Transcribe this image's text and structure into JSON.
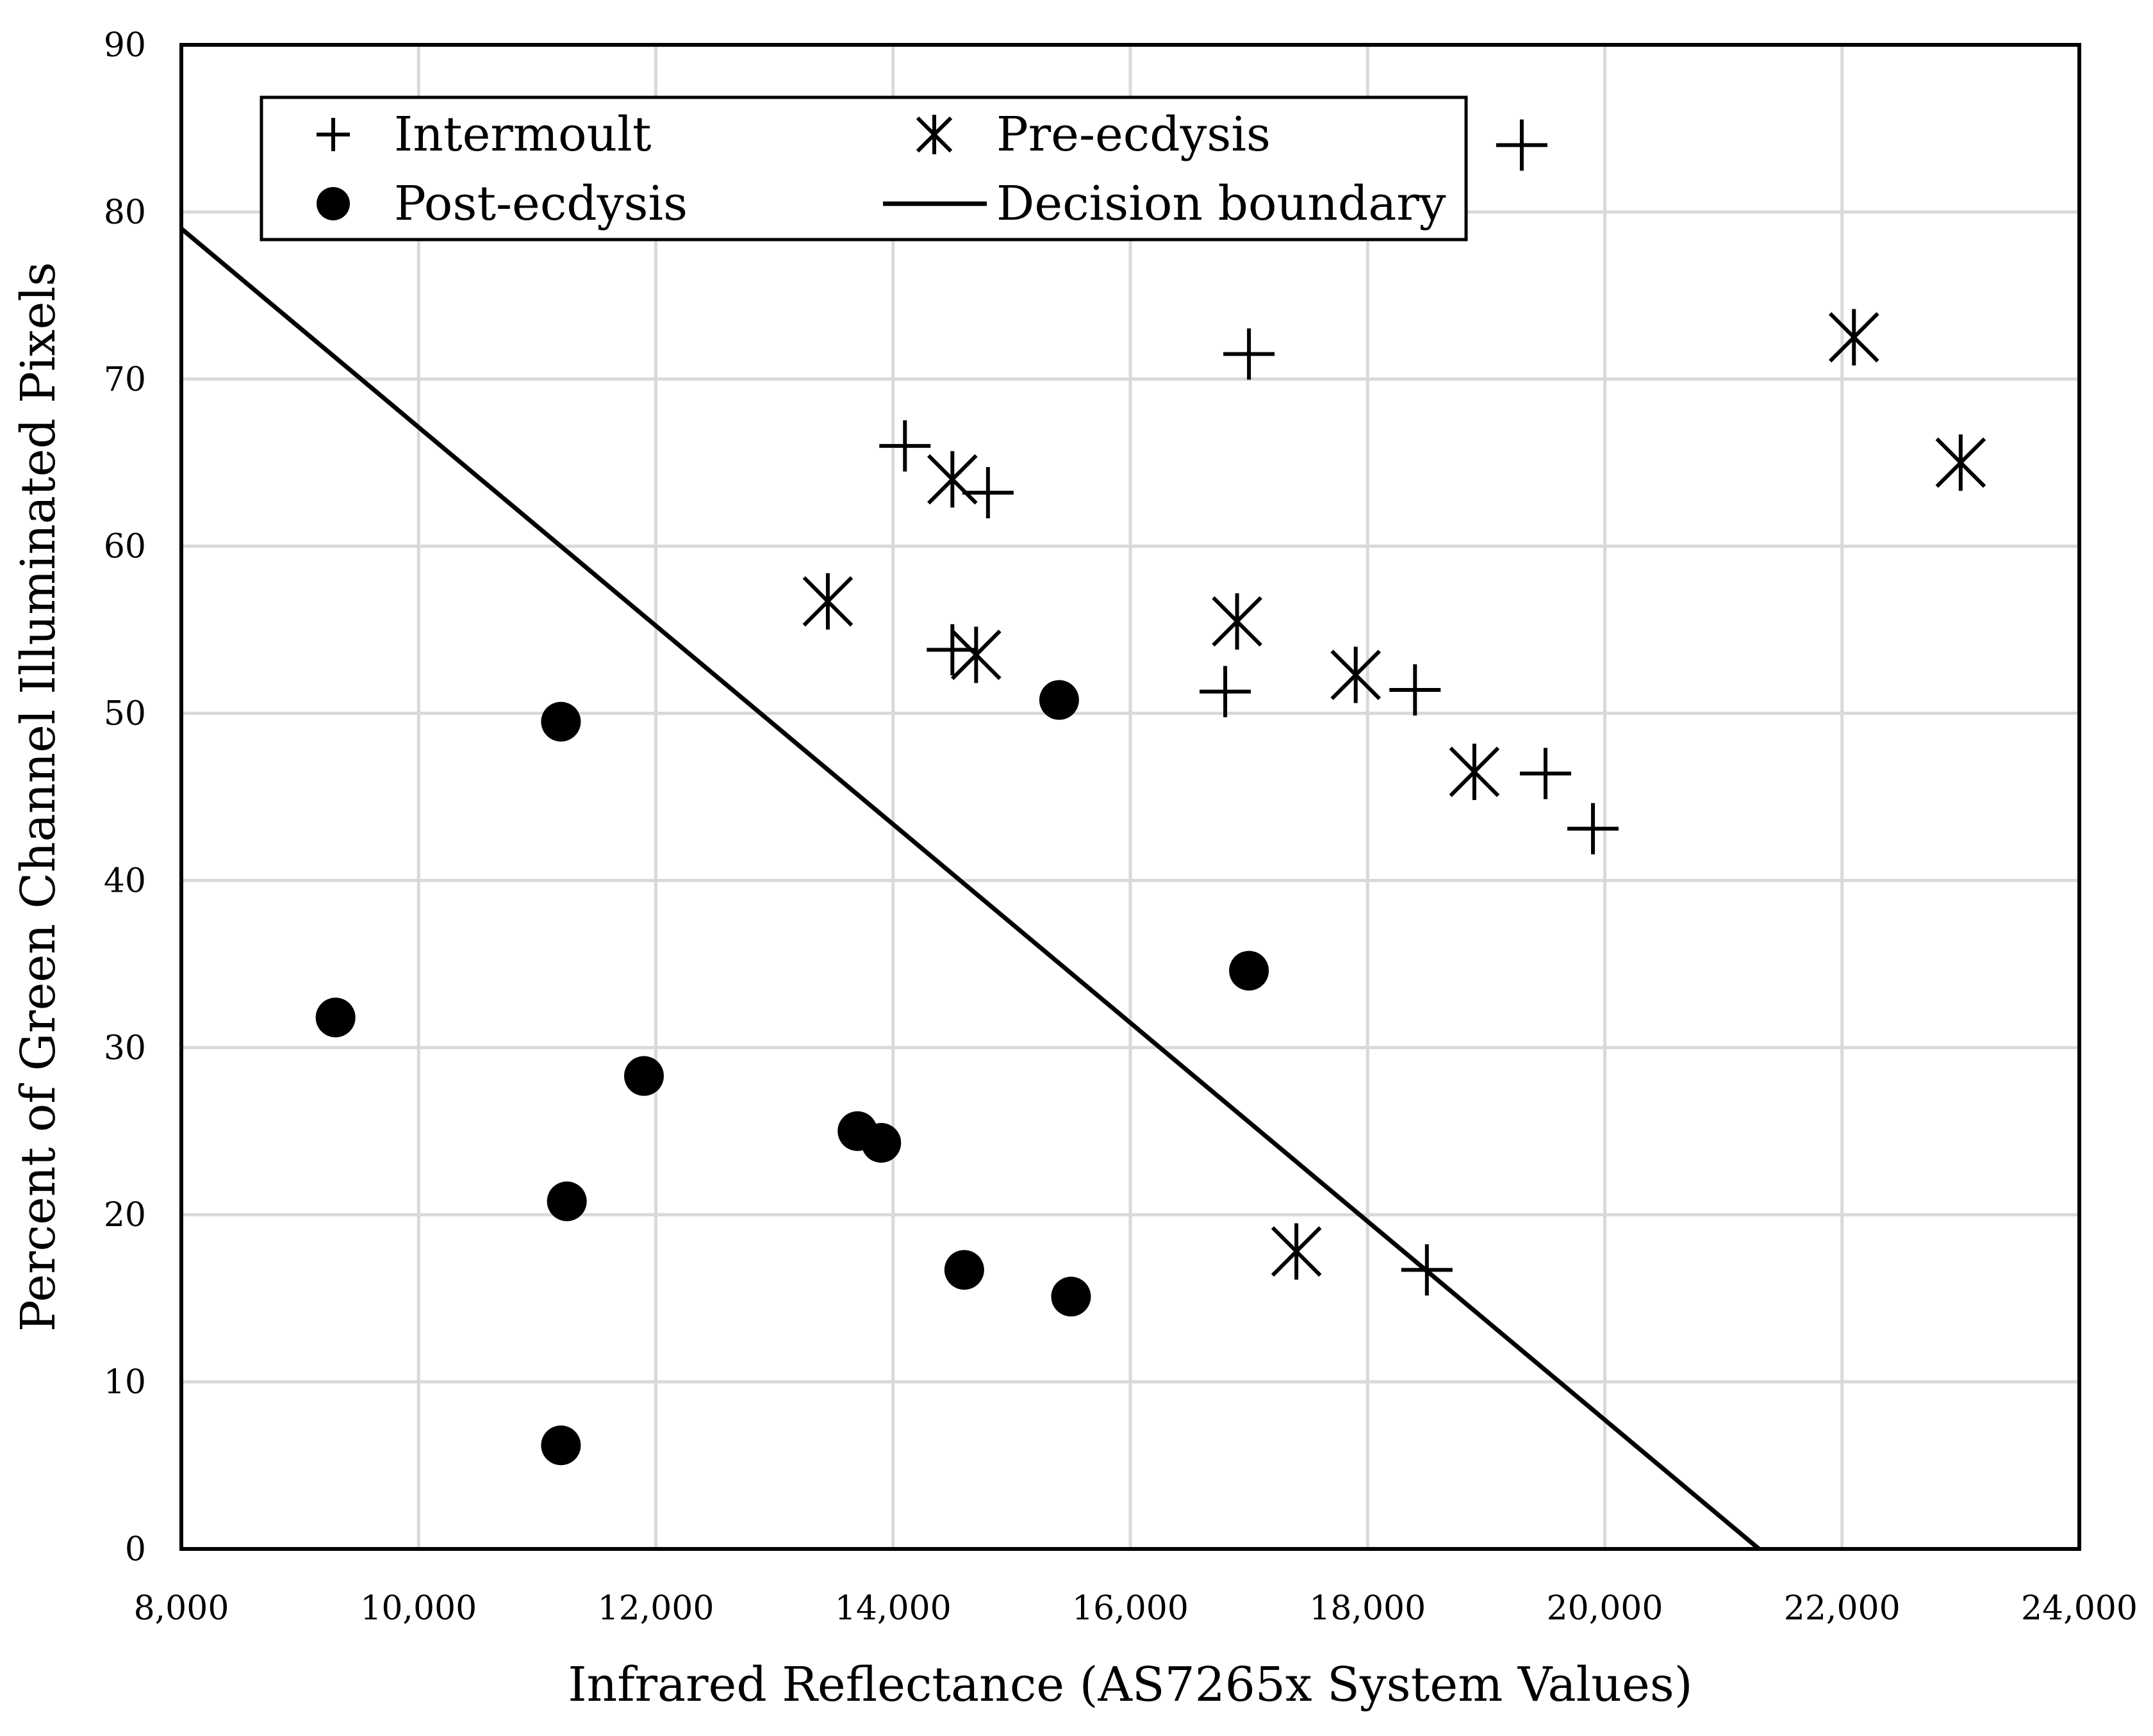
{
  "chart_data": {
    "type": "scatter",
    "title": "",
    "xlabel": "Infrared Reflectance (AS7265x System Values)",
    "ylabel": "Percent of Green Channel Illuminated Pixels",
    "xlim": [
      8000,
      24000
    ],
    "ylim": [
      0,
      90
    ],
    "xticks": [
      8000,
      10000,
      12000,
      14000,
      16000,
      18000,
      20000,
      22000,
      24000
    ],
    "xtick_labels": [
      "8,000",
      "10,000",
      "12,000",
      "14,000",
      "16,000",
      "18,000",
      "20,000",
      "22,000",
      "24,000"
    ],
    "yticks": [
      0,
      10,
      20,
      30,
      40,
      50,
      60,
      70,
      80,
      90
    ],
    "ytick_labels": [
      "0",
      "10",
      "20",
      "30",
      "40",
      "50",
      "60",
      "70",
      "80",
      "90"
    ],
    "grid": true,
    "legend_position": "top",
    "series": [
      {
        "name": "Intermoult",
        "marker": "plus",
        "points": [
          [
            19300,
            84
          ],
          [
            17000,
            71.5
          ],
          [
            14100,
            66
          ],
          [
            14800,
            63.2
          ],
          [
            14500,
            53.8
          ],
          [
            16800,
            51.3
          ],
          [
            18400,
            51.4
          ],
          [
            19500,
            46.4
          ],
          [
            19900,
            43.1
          ],
          [
            18500,
            16.7
          ]
        ]
      },
      {
        "name": "Pre-ecdysis",
        "marker": "asterisk",
        "points": [
          [
            22100,
            72.5
          ],
          [
            23000,
            65
          ],
          [
            14500,
            64
          ],
          [
            13450,
            56.7
          ],
          [
            14700,
            53.5
          ],
          [
            16900,
            55.5
          ],
          [
            17900,
            52.3
          ],
          [
            18900,
            46.5
          ],
          [
            17400,
            17.8
          ]
        ]
      },
      {
        "name": "Post-ecdysis",
        "marker": "circle",
        "points": [
          [
            11200,
            49.5
          ],
          [
            15400,
            50.8
          ],
          [
            17000,
            34.6
          ],
          [
            9300,
            31.8
          ],
          [
            11900,
            28.3
          ],
          [
            13700,
            25
          ],
          [
            13900,
            24.3
          ],
          [
            11250,
            20.8
          ],
          [
            14600,
            16.7
          ],
          [
            15500,
            15.1
          ],
          [
            11200,
            6.2
          ]
        ]
      },
      {
        "name": "Decision boundary",
        "marker": "line",
        "points": [
          [
            8000,
            79
          ],
          [
            21300,
            0
          ]
        ]
      }
    ]
  }
}
